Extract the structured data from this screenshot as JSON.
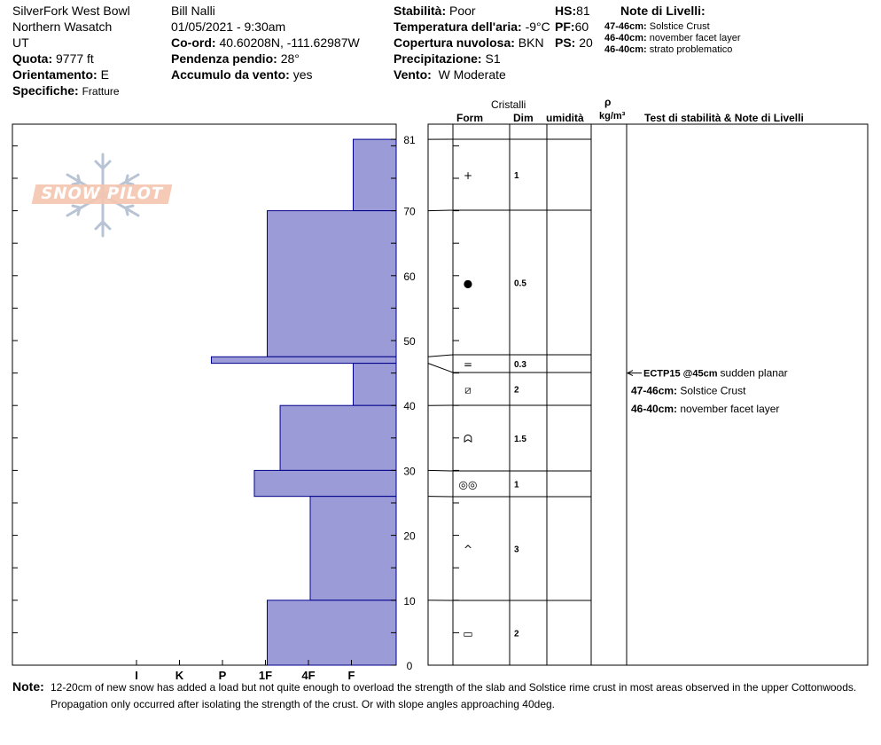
{
  "header": {
    "location": "SilverFork West Bowl",
    "range": "Northern Wasatch",
    "state": "UT",
    "quota_label": "Quota:",
    "quota_value": "9777 ft",
    "orient_label": "Orientamento:",
    "orient_value": "E",
    "spec_label": "Specifiche:",
    "spec_value": "Fratture",
    "observer": "Bill Nalli",
    "datetime": "01/05/2021 - 9:30am",
    "coord_label": "Co-ord:",
    "coord_value": "40.60208N, -111.62987W",
    "pendenza_label": "Pendenza pendio:",
    "pendenza_value": "28°",
    "accumulo_label": "Accumulo da vento:",
    "accumulo_value": "yes",
    "stab_label": "Stabilità:",
    "stab_value": "Poor",
    "temp_label": "Temperatura dell'aria:",
    "temp_value": "-9°C",
    "cop_label": "Copertura nuvolosa:",
    "cop_value": "BKN",
    "prec_label": "Precipitazione:",
    "prec_value": "S1",
    "vento_label": "Vento:",
    "vento_value": "W Moderate",
    "hs_label": "HS:",
    "hs_value": "81",
    "pf_label": "PF:",
    "pf_value": "60",
    "ps_label": "PS:",
    "ps_value": "20",
    "notes_title": "Note di Livelli:",
    "notes": [
      {
        "range": "47-46cm:",
        "text": "Solstice Crust"
      },
      {
        "range": "46-40cm:",
        "text": "november facet layer"
      },
      {
        "range": "46-40cm:",
        "text": "strato problematico"
      }
    ]
  },
  "logo_text": "SNOW PILOT",
  "columns": {
    "cristalli": "Cristalli",
    "form": "Form",
    "dim": "Dim",
    "umidita": "umidità",
    "rho": "ρ",
    "rho_unit": "kg/m³",
    "test": "Test di stabilità & Note di Livelli"
  },
  "test_notes": [
    {
      "bold": "ECTP15 @45cm",
      "text": "sudden planar",
      "depth": 45,
      "arrow": true
    },
    {
      "bold": "47-46cm:",
      "text": "Solstice Crust",
      "depth": 42.3,
      "arrow": false
    },
    {
      "bold": "46-40cm:",
      "text": "november facet layer",
      "depth": 39.5,
      "arrow": false
    }
  ],
  "footer": {
    "label": "Note:",
    "line1": "12-20cm of new snow has added a load but not quite enough to overload the strength of the slab and Solstice rime crust in most areas observed in the upper Cottonwoods.",
    "line2": "Propagation only occurred after isolating the strength of the crust. Or with slope angles approaching 40deg."
  },
  "colors": {
    "bar_fill": "#9b9bd7",
    "bar_stroke": "#00008b"
  },
  "chart_data": {
    "type": "bar",
    "title": "",
    "xlabel": "",
    "ylabel": "",
    "ylim": [
      0,
      83
    ],
    "hardness_scale": [
      "I",
      "K",
      "P",
      "1F",
      "4F",
      "F"
    ],
    "hardness_note": "hardness index: F=1, 4F=2, 1F=3, P=4, K=5, I=6",
    "height_ticks": [
      0,
      10,
      20,
      30,
      40,
      50,
      60,
      70,
      81
    ],
    "layers": [
      {
        "bottom": 70,
        "top": 81,
        "hardness": 1.0,
        "form": "+",
        "size": "1"
      },
      {
        "bottom": 47.5,
        "top": 70,
        "hardness": 3.0,
        "form": "●",
        "size": "0.5"
      },
      {
        "bottom": 46.5,
        "top": 47.5,
        "hardness": 4.3,
        "form": "=",
        "size": "0.3"
      },
      {
        "bottom": 40,
        "top": 46.5,
        "hardness": 1.0,
        "form": "⧄",
        "size": "2"
      },
      {
        "bottom": 30,
        "top": 40,
        "hardness": 2.7,
        "form": "ᗣ",
        "size": "1.5"
      },
      {
        "bottom": 26,
        "top": 30,
        "hardness": 3.3,
        "form": "◎◎",
        "size": "1"
      },
      {
        "bottom": 10,
        "top": 26,
        "hardness": 2.0,
        "form": "^",
        "size": "3"
      },
      {
        "bottom": 0,
        "top": 10,
        "hardness": 3.0,
        "form": "▭",
        "size": "2"
      }
    ]
  }
}
